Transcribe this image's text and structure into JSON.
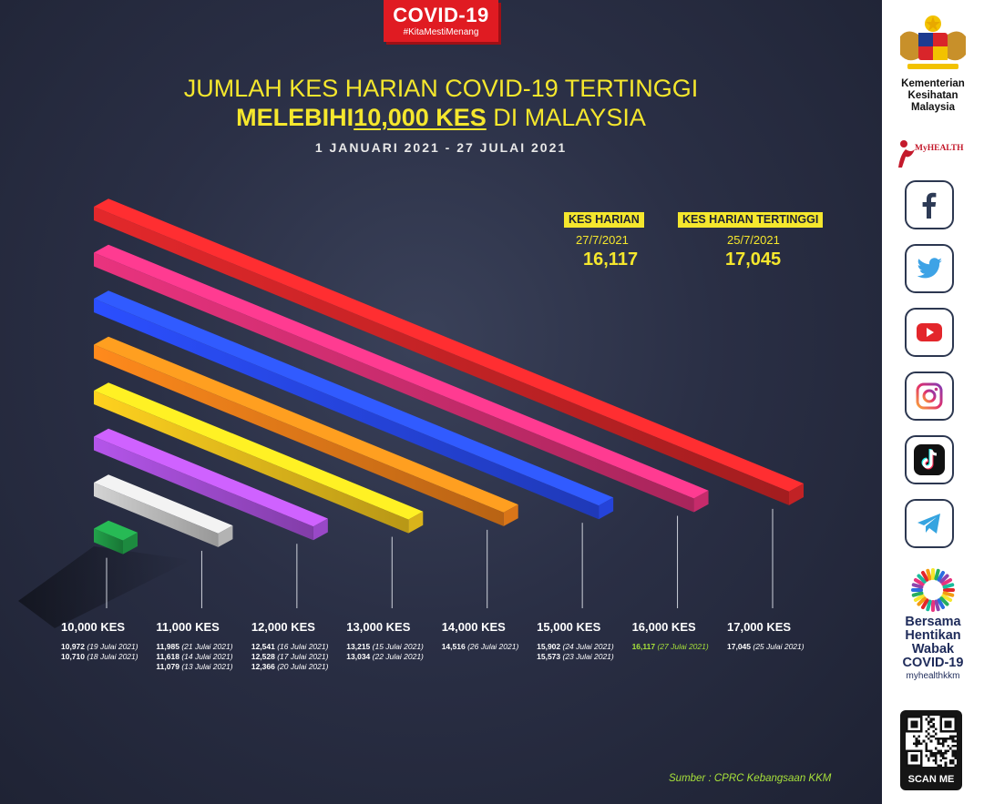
{
  "badge": {
    "title": "COVID-19",
    "hashtag": "#KitaMestiMenang"
  },
  "title": {
    "line1": "JUMLAH KES HARIAN COVID-19 TERTINGGI",
    "line2_bold": "MELEBIHI",
    "line2_underlined": "10,000 KES",
    "line2_rest": " DI MALAYSIA",
    "daterange": "1 JANUARI 2021 - 27 JULAI 2021"
  },
  "stats": [
    {
      "label": "KES HARIAN",
      "date": "27/7/2021",
      "value": "16,117"
    },
    {
      "label": "KES HARIAN TERTINGGI",
      "date": "25/7/2021",
      "value": "17,045"
    }
  ],
  "chart_data": {
    "type": "bar",
    "categories": [
      "10,000 KES",
      "11,000 KES",
      "12,000 KES",
      "13,000 KES",
      "14,000 KES",
      "15,000 KES",
      "16,000 KES",
      "17,000 KES"
    ],
    "values": [
      10000,
      11000,
      12000,
      13000,
      14000,
      15000,
      16000,
      17000
    ],
    "colors": [
      "#22a24a",
      "#d3d3d3",
      "#b455ea",
      "#ffd21f",
      "#ff8a1c",
      "#2b4fff",
      "#e9337e",
      "#e3282b"
    ],
    "records": [
      [
        {
          "value": "10,972",
          "date": "(19 Julai 2021)"
        },
        {
          "value": "10,710",
          "date": "(18 Julai 2021)"
        }
      ],
      [
        {
          "value": "11,985",
          "date": "(21 Julai 2021)"
        },
        {
          "value": "11,618",
          "date": "(14 Julai 2021)"
        },
        {
          "value": "11,079",
          "date": "(13 Julai 2021)"
        }
      ],
      [
        {
          "value": "12,541",
          "date": "(16 Julai 2021)"
        },
        {
          "value": "12,528",
          "date": "(17 Julai 2021)"
        },
        {
          "value": "12,366",
          "date": "(20 Julai 2021)"
        }
      ],
      [
        {
          "value": "13,215",
          "date": "(15 Julai 2021)"
        },
        {
          "value": "13,034",
          "date": "(22 Julai 2021)"
        }
      ],
      [
        {
          "value": "14,516",
          "date": "(26 Julai 2021)"
        }
      ],
      [
        {
          "value": "15,902",
          "date": "(24 Julai 2021)"
        },
        {
          "value": "15,573",
          "date": "(23 Julai 2021)"
        }
      ],
      [
        {
          "value": "16,117",
          "date": "(27 Julai 2021)",
          "highlight": true
        }
      ],
      [
        {
          "value": "17,045",
          "date": "(25 Julai 2021)"
        }
      ]
    ],
    "highlight_color": "#a7e13a"
  },
  "source": "Sumber : CPRC Kebangsaan KKM",
  "sidebar": {
    "ministry": [
      "Kementerian",
      "Kesihatan",
      "Malaysia"
    ],
    "myhealth": "MyHEALTH",
    "socials": [
      "facebook-icon",
      "twitter-icon",
      "youtube-icon",
      "instagram-icon",
      "tiktok-icon",
      "telegram-icon"
    ],
    "campaign": [
      "Bersama",
      "Hentikan",
      "Wabak",
      "COVID-19"
    ],
    "campaign_url": "myhealthkkm",
    "qr_label": "SCAN ME"
  }
}
